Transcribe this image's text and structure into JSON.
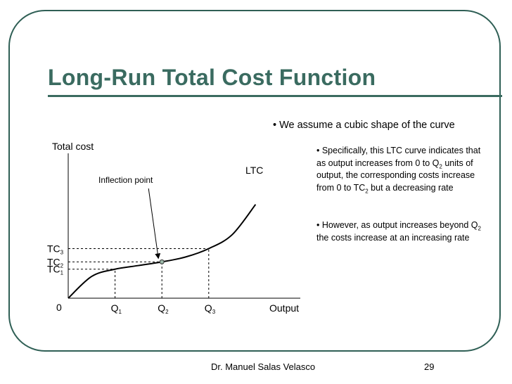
{
  "slide": {
    "title": "Long-Run Total Cost Function",
    "bullet_main": "• We assume a cubic shape of the curve",
    "para1": {
      "t1": "• Specifically, this LTC curve indicates that as output increases from 0 to Q",
      "s1": "2",
      "t2": " units of output, the corresponding costs increase from 0 to TC",
      "s2": "2",
      "t3": " but a decreasing rate"
    },
    "para2": {
      "t1": "• However, as output increases beyond Q",
      "s1": "2",
      "t2": " the costs increase at an increasing rate"
    },
    "footer_author": "Dr. Manuel Salas Velasco",
    "footer_page": "29"
  },
  "chart_data": {
    "type": "line",
    "ylabel": "Total cost",
    "xlabel": "Output",
    "origin_label": "0",
    "curve_label": "LTC",
    "annotation": "Inflection point",
    "x_ticks": [
      {
        "base": "Q",
        "sub": "1"
      },
      {
        "base": "Q",
        "sub": "2"
      },
      {
        "base": "Q",
        "sub": "3"
      }
    ],
    "y_ticks": [
      {
        "base": "TC",
        "sub": "1"
      },
      {
        "base": "TC",
        "sub": "2"
      },
      {
        "base": "TC",
        "sub": "3"
      }
    ],
    "series": [
      {
        "x": [
          0,
          1,
          2,
          3,
          4,
          5,
          6,
          7,
          8
        ],
        "y": [
          0,
          3.6,
          4.8,
          5.4,
          6.0,
          6.8,
          8.2,
          10.5,
          15.5
        ]
      }
    ],
    "reference_points": [
      {
        "x": 2,
        "y": 4.8
      },
      {
        "x": 4,
        "y": 6.0
      },
      {
        "x": 6,
        "y": 8.2
      }
    ],
    "inflection": {
      "x": 4,
      "y": 6.0
    },
    "xlim": [
      0,
      9
    ],
    "ylim": [
      0,
      16
    ]
  }
}
